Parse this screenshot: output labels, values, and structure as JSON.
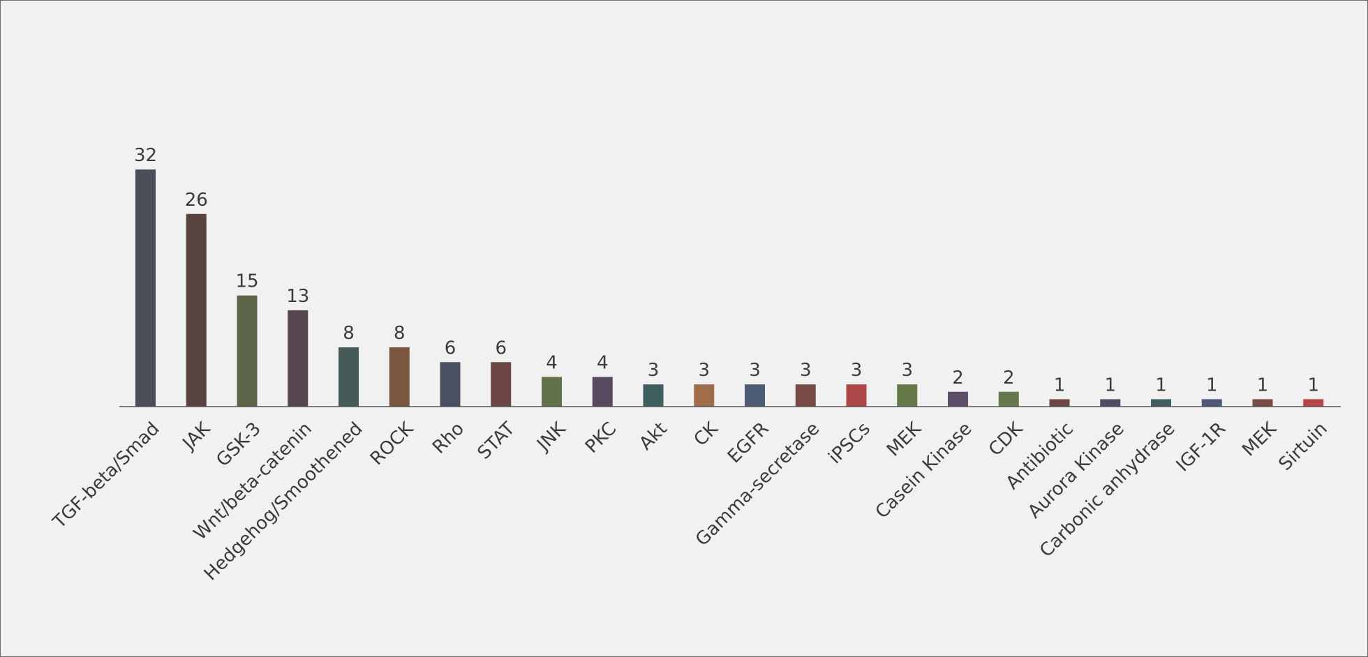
{
  "chart_data": {
    "type": "bar",
    "title": "",
    "xlabel": "",
    "ylabel": "",
    "ylim": [
      0,
      32
    ],
    "grid": false,
    "legend": "none",
    "data_labels": true,
    "categories": [
      "TGF-beta/Smad",
      "JAK",
      "GSK-3",
      "Wnt/beta-catenin",
      "Hedgehog/Smoothened",
      "ROCK",
      "Rho",
      "STAT",
      "JNK",
      "PKC",
      "Akt",
      "CK",
      "EGFR",
      "Gamma-secretase",
      "iPSCs",
      "MEK",
      "Casein Kinase",
      "CDK",
      "Antibiotic",
      "Aurora Kinase",
      "Carbonic anhydrase",
      "IGF-1R",
      "MEK",
      "Sirtuin"
    ],
    "values": [
      32,
      26,
      15,
      13,
      8,
      8,
      6,
      6,
      4,
      4,
      3,
      3,
      3,
      3,
      3,
      3,
      2,
      2,
      1,
      1,
      1,
      1,
      1,
      1
    ],
    "colors": [
      "#4a4e58",
      "#5a4440",
      "#5b6446",
      "#54454f",
      "#465a58",
      "#7a573e",
      "#4a5062",
      "#6d4644",
      "#63714a",
      "#574a5e",
      "#3f5e60",
      "#a06d4b",
      "#4e5b74",
      "#774a44",
      "#ac4648",
      "#647848",
      "#5c4d68",
      "#66784e",
      "#6e4644",
      "#524b62",
      "#3e5e60",
      "#4d5878",
      "#7a4a44",
      "#b54548"
    ]
  }
}
